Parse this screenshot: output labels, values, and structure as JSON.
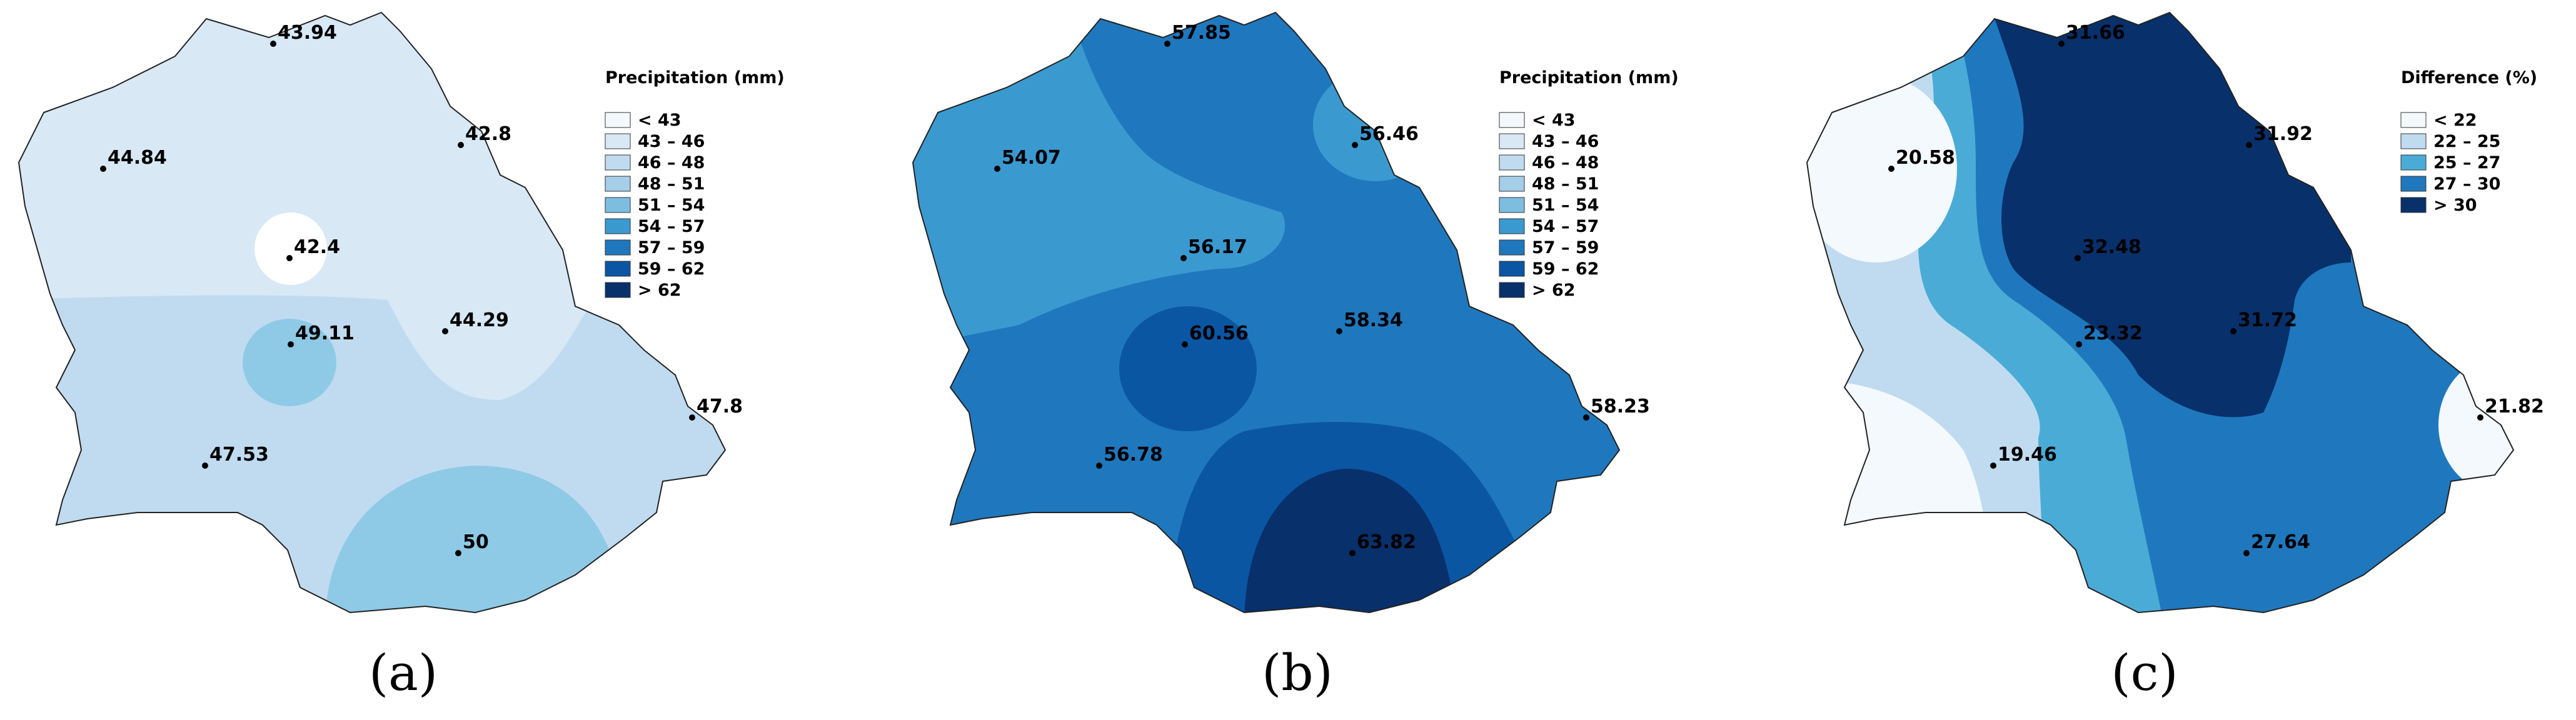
{
  "palette": [
    "#f4f9fd",
    "#d8e8f5",
    "#c0dbf0",
    "#a5cee8",
    "#7cbde0",
    "#3a9ad0",
    "#1f78bd",
    "#0b56a3",
    "#08306b"
  ],
  "panels": [
    {
      "caption": "(a)",
      "legend": {
        "title": "Precipitation (mm)",
        "items": [
          {
            "label": "< 43",
            "color": "#f4f9fd"
          },
          {
            "label": "43 – 46",
            "color": "#d8e8f5"
          },
          {
            "label": "46 – 48",
            "color": "#c0dbf0"
          },
          {
            "label": "48 – 51",
            "color": "#a5cee8"
          },
          {
            "label": "51 – 54",
            "color": "#7cbde0"
          },
          {
            "label": "54 – 57",
            "color": "#3a9ad0"
          },
          {
            "label": "57 – 59",
            "color": "#1f78bd"
          },
          {
            "label": "59 – 62",
            "color": "#0b56a3"
          },
          {
            "label": "> 62",
            "color": "#08306b"
          }
        ]
      },
      "stations": [
        {
          "value": "43.94"
        },
        {
          "value": "44.84"
        },
        {
          "value": "42.8"
        },
        {
          "value": "42.4"
        },
        {
          "value": "49.11"
        },
        {
          "value": "44.29"
        },
        {
          "value": "47.8"
        },
        {
          "value": "47.53"
        },
        {
          "value": "50"
        }
      ],
      "zone_colors": {
        "base": "#d8e8f5",
        "south": "#c0dbf0",
        "east_tongue": "#d8e8f5",
        "west_blob": "#8ecae5",
        "south_bowl": "#8ecae5",
        "center_hole": "#ffffff"
      }
    },
    {
      "caption": "(b)",
      "legend": {
        "title": "Precipitation (mm)",
        "items": [
          {
            "label": "< 43",
            "color": "#f4f9fd"
          },
          {
            "label": "43 – 46",
            "color": "#d8e8f5"
          },
          {
            "label": "46 – 48",
            "color": "#c0dbf0"
          },
          {
            "label": "48 – 51",
            "color": "#a5cee8"
          },
          {
            "label": "51 – 54",
            "color": "#7cbde0"
          },
          {
            "label": "54 – 57",
            "color": "#3a9ad0"
          },
          {
            "label": "57 – 59",
            "color": "#1f78bd"
          },
          {
            "label": "59 – 62",
            "color": "#0b56a3"
          },
          {
            "label": "> 62",
            "color": "#08306b"
          }
        ]
      },
      "stations": [
        {
          "value": "57.85"
        },
        {
          "value": "54.07"
        },
        {
          "value": "56.46"
        },
        {
          "value": "56.17"
        },
        {
          "value": "60.56"
        },
        {
          "value": "58.34"
        },
        {
          "value": "58.23"
        },
        {
          "value": "56.78"
        },
        {
          "value": "63.82"
        }
      ],
      "zone_colors": {
        "base": "#1f78bd",
        "north_west": "#3a9ad0",
        "north_east": "#3a9ad0",
        "center_blob": "#0b56a3",
        "south": "#0b56a3",
        "south_bowl": "#08306b"
      }
    },
    {
      "caption": "(c)",
      "legend": {
        "title": "Difference (%)",
        "items": [
          {
            "label": "< 22",
            "color": "#f4f9fd"
          },
          {
            "label": "22 – 25",
            "color": "#c0dbf0"
          },
          {
            "label": "25 – 27",
            "color": "#4aacd6"
          },
          {
            "label": "27 – 30",
            "color": "#1f78bd"
          },
          {
            "label": "> 30",
            "color": "#08306b"
          }
        ]
      },
      "stations": [
        {
          "value": "31.66"
        },
        {
          "value": "20.58"
        },
        {
          "value": "31.92"
        },
        {
          "value": "32.48"
        },
        {
          "value": "23.32"
        },
        {
          "value": "31.72"
        },
        {
          "value": "21.82"
        },
        {
          "value": "19.46"
        },
        {
          "value": "27.64"
        }
      ],
      "zone_colors": {
        "base": "#c0dbf0",
        "band_25_27": "#4aacd6",
        "band_27_30": "#1f78bd",
        "core": "#08306b",
        "low": "#f4f9fd"
      }
    }
  ]
}
